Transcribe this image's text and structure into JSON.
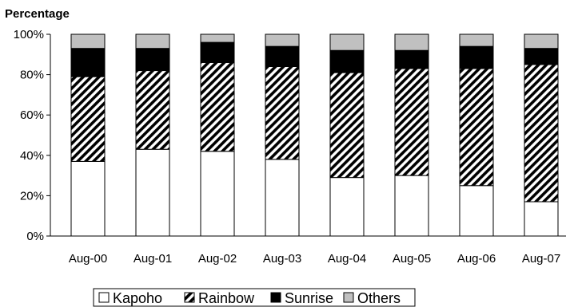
{
  "chart_data": {
    "type": "bar",
    "stacked": true,
    "ylabel": "Percentage",
    "xlabel": "",
    "title": "",
    "ylim": [
      0,
      100
    ],
    "yticks": [
      "0%",
      "20%",
      "40%",
      "60%",
      "80%",
      "100%"
    ],
    "ytick_values": [
      0,
      20,
      40,
      60,
      80,
      100
    ],
    "grid": false,
    "legend_position": "bottom",
    "categories": [
      "Aug-00",
      "Aug-01",
      "Aug-02",
      "Aug-03",
      "Aug-04",
      "Aug-05",
      "Aug-06",
      "Aug-07"
    ],
    "series": [
      {
        "name": "Kapoho",
        "fill": "white",
        "values": [
          37,
          43,
          42,
          38,
          29,
          30,
          25,
          17
        ]
      },
      {
        "name": "Rainbow",
        "fill": "hatched",
        "values": [
          42,
          39,
          44,
          46,
          52,
          53,
          58,
          68
        ]
      },
      {
        "name": "Sunrise",
        "fill": "black",
        "values": [
          14,
          11,
          10,
          10,
          11,
          9,
          11,
          8
        ]
      },
      {
        "name": "Others",
        "fill": "gray",
        "values": [
          7,
          7,
          4,
          6,
          8,
          8,
          6,
          7
        ]
      }
    ],
    "colors": {
      "Kapoho": "#ffffff",
      "Rainbow": "#000000",
      "Sunrise": "#000000",
      "Others": "#c0c0c0",
      "outline": "#000000"
    }
  }
}
